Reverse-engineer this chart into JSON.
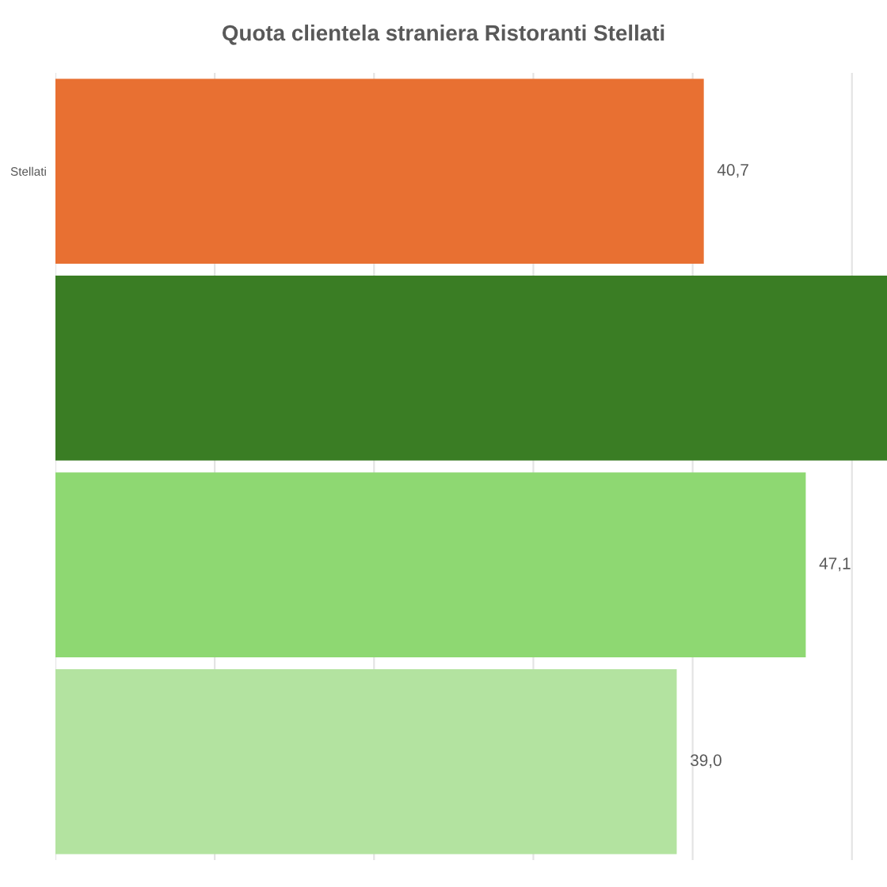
{
  "chart_data": {
    "type": "bar",
    "orientation": "horizontal",
    "title": "Quota clientela straniera Ristoranti Stellati",
    "categories": [
      "Stellati",
      null,
      null,
      null
    ],
    "values": [
      40.7,
      52.2,
      47.1,
      39.0
    ],
    "colors": [
      "#e87032",
      "#3a7d24",
      "#8ed872",
      "#b3e3a0"
    ],
    "value_labels": [
      "40,7",
      null,
      "47,1",
      "39,0"
    ],
    "xlim": [
      0,
      52.2
    ],
    "xticks": [
      {
        "value": 0,
        "label": null
      },
      {
        "value": 10,
        "label": null
      },
      {
        "value": 20,
        "label": null
      },
      {
        "value": 30,
        "label": null
      },
      {
        "value": 40,
        "label": null
      },
      {
        "value": 50,
        "label": null
      }
    ],
    "grid": "x",
    "tick_labels": "y"
  }
}
